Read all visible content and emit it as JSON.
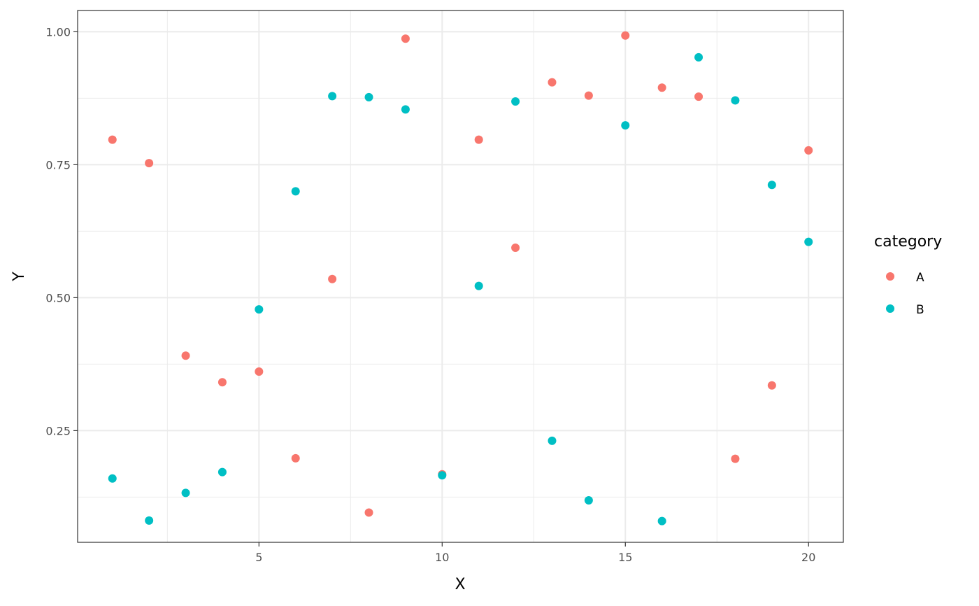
{
  "chart_data": {
    "type": "scatter",
    "xlabel": "X",
    "ylabel": "Y",
    "xlim": [
      0.05,
      20.95
    ],
    "ylim": [
      0.04,
      1.04
    ],
    "x_ticks": [
      5,
      10,
      15,
      20
    ],
    "x_tick_labels": [
      "5",
      "10",
      "15",
      "20"
    ],
    "x_minor_ticks": [
      2.5,
      7.5,
      12.5,
      17.5
    ],
    "y_ticks": [
      0.25,
      0.5,
      0.75,
      1.0
    ],
    "y_tick_labels": [
      "0.25",
      "0.50",
      "0.75",
      "1.00"
    ],
    "y_minor_ticks": [
      0.125,
      0.375,
      0.625,
      0.875
    ],
    "grid": true,
    "legend": {
      "title": "category",
      "placement": "right"
    },
    "series": [
      {
        "name": "A",
        "color": "#F8766D",
        "points": [
          [
            1,
            0.797
          ],
          [
            2,
            0.753
          ],
          [
            3,
            0.391
          ],
          [
            4,
            0.341
          ],
          [
            5,
            0.361
          ],
          [
            6,
            0.198
          ],
          [
            7,
            0.535
          ],
          [
            8,
            0.096
          ],
          [
            9,
            0.987
          ],
          [
            10,
            0.168
          ],
          [
            11,
            0.797
          ],
          [
            12,
            0.594
          ],
          [
            13,
            0.905
          ],
          [
            14,
            0.88
          ],
          [
            15,
            0.993
          ],
          [
            16,
            0.895
          ],
          [
            17,
            0.878
          ],
          [
            18,
            0.197
          ],
          [
            19,
            0.335
          ],
          [
            20,
            0.777
          ]
        ]
      },
      {
        "name": "B",
        "color": "#00BFC4",
        "points": [
          [
            1,
            0.16
          ],
          [
            2,
            0.081
          ],
          [
            3,
            0.133
          ],
          [
            4,
            0.172
          ],
          [
            5,
            0.478
          ],
          [
            6,
            0.7
          ],
          [
            7,
            0.879
          ],
          [
            8,
            0.877
          ],
          [
            9,
            0.854
          ],
          [
            10,
            0.166
          ],
          [
            11,
            0.522
          ],
          [
            12,
            0.869
          ],
          [
            13,
            0.231
          ],
          [
            14,
            0.119
          ],
          [
            15,
            0.824
          ],
          [
            16,
            0.08
          ],
          [
            17,
            0.952
          ],
          [
            18,
            0.871
          ],
          [
            19,
            0.712
          ],
          [
            20,
            0.605
          ]
        ]
      }
    ]
  }
}
